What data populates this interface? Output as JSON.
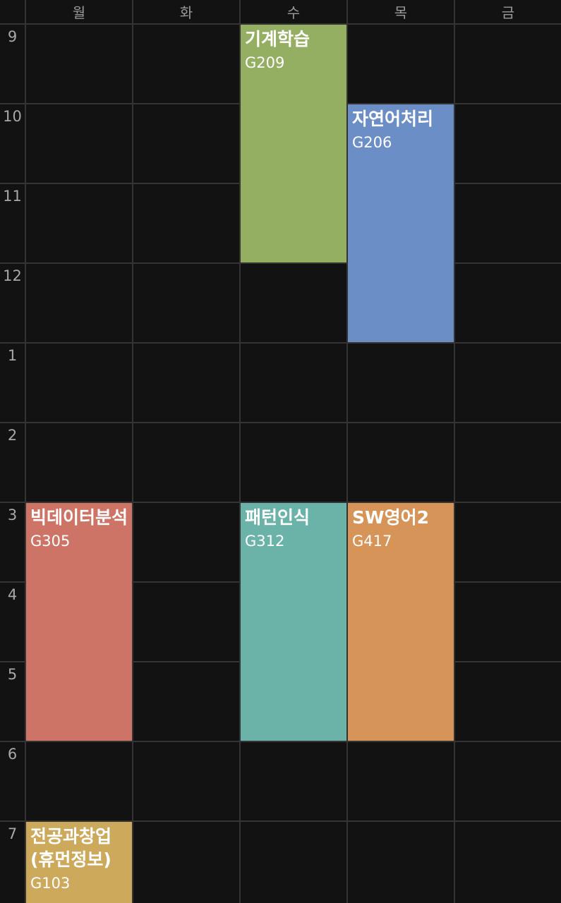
{
  "days": [
    "월",
    "화",
    "수",
    "목",
    "금"
  ],
  "hours": [
    "9",
    "10",
    "11",
    "12",
    "1",
    "2",
    "3",
    "4",
    "5",
    "6",
    "7"
  ],
  "courses": [
    {
      "title": "기계학습",
      "room": "G209",
      "day": "수",
      "start": "9",
      "end": "12",
      "color": "#94ae62"
    },
    {
      "title": "자연어처리",
      "room": "G206",
      "day": "목",
      "start": "10",
      "end": "1",
      "color": "#6b8ec7"
    },
    {
      "title": "빅데이터분석",
      "room": "G305",
      "day": "월",
      "start": "3",
      "end": "6",
      "color": "#cd7466"
    },
    {
      "title": "패턴인식",
      "room": "G312",
      "day": "수",
      "start": "3",
      "end": "6",
      "color": "#6bb3a8"
    },
    {
      "title": "SW영어2",
      "room": "G417",
      "day": "목",
      "start": "3",
      "end": "6",
      "color": "#d69458"
    },
    {
      "title": "전공과창업(휴먼정보)",
      "room": "G103",
      "day": "월",
      "start": "7",
      "end": "",
      "color": "#cda95c"
    }
  ]
}
